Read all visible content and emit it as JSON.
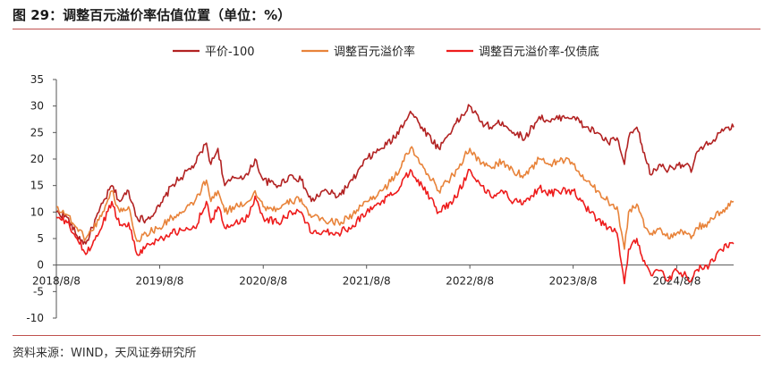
{
  "title": "图 29：调整百元溢价率估值位置（单位：%）",
  "source": "资料来源：WIND，天风证券研究所",
  "chart_data": {
    "type": "line",
    "x_ticks": [
      "2018/8/8",
      "2019/8/8",
      "2020/8/8",
      "2021/8/8",
      "2022/8/8",
      "2023/8/8",
      "2024/8/8"
    ],
    "y_ticks": [
      35,
      30,
      25,
      20,
      15,
      10,
      5,
      0,
      -5,
      -10
    ],
    "ylim": [
      -10,
      35
    ],
    "xlim": [
      "2018-08-08",
      "2025-02-25"
    ],
    "legend_position": "top-center",
    "grid": false,
    "series": [
      {
        "name": "平价-100",
        "color": "#b22222",
        "points": [
          [
            "2018-08-08",
            10.0
          ],
          [
            "2018-09-15",
            9.0
          ],
          [
            "2018-10-20",
            5.5
          ],
          [
            "2018-11-20",
            4.0
          ],
          [
            "2019-01-05",
            10.0
          ],
          [
            "2019-02-20",
            15.0
          ],
          [
            "2019-03-20",
            12.0
          ],
          [
            "2019-04-20",
            14.0
          ],
          [
            "2019-05-20",
            9.0
          ],
          [
            "2019-06-20",
            8.5
          ],
          [
            "2019-08-08",
            11.0
          ],
          [
            "2019-09-20",
            15.0
          ],
          [
            "2019-11-01",
            17.0
          ],
          [
            "2019-12-10",
            19.0
          ],
          [
            "2020-01-20",
            23.0
          ],
          [
            "2020-02-05",
            19.0
          ],
          [
            "2020-03-01",
            22.0
          ],
          [
            "2020-03-25",
            15.0
          ],
          [
            "2020-05-01",
            16.5
          ],
          [
            "2020-06-15",
            17.0
          ],
          [
            "2020-07-10",
            20.0
          ],
          [
            "2020-08-08",
            16.0
          ],
          [
            "2020-09-30",
            15.0
          ],
          [
            "2020-11-15",
            17.0
          ],
          [
            "2020-12-20",
            16.0
          ],
          [
            "2021-01-25",
            12.0
          ],
          [
            "2021-03-10",
            14.0
          ],
          [
            "2021-05-01",
            13.0
          ],
          [
            "2021-06-20",
            16.0
          ],
          [
            "2021-08-08",
            20.0
          ],
          [
            "2021-09-30",
            22.0
          ],
          [
            "2021-11-15",
            24.0
          ],
          [
            "2022-01-10",
            29.0
          ],
          [
            "2022-02-20",
            26.0
          ],
          [
            "2022-04-20",
            22.0
          ],
          [
            "2022-06-10",
            26.0
          ],
          [
            "2022-08-08",
            30.0
          ],
          [
            "2022-09-15",
            27.0
          ],
          [
            "2022-10-20",
            26.0
          ],
          [
            "2022-12-01",
            27.0
          ],
          [
            "2023-01-10",
            25.0
          ],
          [
            "2023-02-20",
            24.0
          ],
          [
            "2023-04-10",
            28.0
          ],
          [
            "2023-05-20",
            27.0
          ],
          [
            "2023-06-30",
            28.0
          ],
          [
            "2023-08-08",
            28.0
          ],
          [
            "2023-09-20",
            26.0
          ],
          [
            "2023-11-01",
            25.0
          ],
          [
            "2023-12-10",
            23.0
          ],
          [
            "2024-01-10",
            24.0
          ],
          [
            "2024-02-05",
            19.0
          ],
          [
            "2024-02-20",
            24.0
          ],
          [
            "2024-03-20",
            26.0
          ],
          [
            "2024-04-20",
            20.0
          ],
          [
            "2024-05-10",
            17.0
          ],
          [
            "2024-06-10",
            19.0
          ],
          [
            "2024-07-10",
            18.0
          ],
          [
            "2024-08-08",
            19.0
          ],
          [
            "2024-09-10",
            19.0
          ],
          [
            "2024-09-28",
            17.5
          ],
          [
            "2024-10-15",
            21.0
          ],
          [
            "2024-12-01",
            23.0
          ],
          [
            "2025-01-10",
            25.0
          ],
          [
            "2025-02-25",
            26.0
          ]
        ]
      },
      {
        "name": "调整百元溢价率",
        "color": "#e8833a",
        "points": [
          [
            "2018-08-08",
            11.0
          ],
          [
            "2018-09-15",
            9.5
          ],
          [
            "2018-10-20",
            7.0
          ],
          [
            "2018-11-20",
            5.0
          ],
          [
            "2019-01-05",
            8.5
          ],
          [
            "2019-02-20",
            14.0
          ],
          [
            "2019-03-20",
            10.0
          ],
          [
            "2019-04-20",
            11.0
          ],
          [
            "2019-05-20",
            4.5
          ],
          [
            "2019-06-20",
            6.0
          ],
          [
            "2019-08-08",
            7.0
          ],
          [
            "2019-09-20",
            9.0
          ],
          [
            "2019-11-01",
            10.0
          ],
          [
            "2019-12-10",
            12.0
          ],
          [
            "2020-01-20",
            16.0
          ],
          [
            "2020-02-05",
            12.0
          ],
          [
            "2020-03-01",
            14.0
          ],
          [
            "2020-03-25",
            10.0
          ],
          [
            "2020-05-01",
            11.0
          ],
          [
            "2020-06-15",
            12.0
          ],
          [
            "2020-07-10",
            14.0
          ],
          [
            "2020-08-08",
            11.0
          ],
          [
            "2020-09-30",
            10.5
          ],
          [
            "2020-11-15",
            12.0
          ],
          [
            "2020-12-20",
            12.5
          ],
          [
            "2021-01-25",
            9.0
          ],
          [
            "2021-03-10",
            8.5
          ],
          [
            "2021-05-01",
            8.0
          ],
          [
            "2021-06-20",
            9.5
          ],
          [
            "2021-08-08",
            12.0
          ],
          [
            "2021-09-30",
            14.0
          ],
          [
            "2021-11-15",
            16.5
          ],
          [
            "2022-01-10",
            22.0
          ],
          [
            "2022-02-20",
            19.0
          ],
          [
            "2022-04-20",
            14.0
          ],
          [
            "2022-06-10",
            17.0
          ],
          [
            "2022-08-08",
            22.0
          ],
          [
            "2022-09-15",
            19.0
          ],
          [
            "2022-10-20",
            18.5
          ],
          [
            "2022-12-01",
            19.5
          ],
          [
            "2023-01-10",
            17.5
          ],
          [
            "2023-02-20",
            17.0
          ],
          [
            "2023-04-10",
            20.0
          ],
          [
            "2023-05-20",
            19.0
          ],
          [
            "2023-06-30",
            20.0
          ],
          [
            "2023-08-08",
            19.0
          ],
          [
            "2023-09-20",
            16.0
          ],
          [
            "2023-11-01",
            14.0
          ],
          [
            "2023-12-10",
            12.0
          ],
          [
            "2024-01-10",
            11.0
          ],
          [
            "2024-02-05",
            3.0
          ],
          [
            "2024-02-20",
            10.0
          ],
          [
            "2024-03-20",
            11.5
          ],
          [
            "2024-04-20",
            7.0
          ],
          [
            "2024-05-10",
            6.0
          ],
          [
            "2024-06-10",
            7.0
          ],
          [
            "2024-07-10",
            5.0
          ],
          [
            "2024-08-08",
            6.0
          ],
          [
            "2024-09-10",
            6.0
          ],
          [
            "2024-09-28",
            5.0
          ],
          [
            "2024-10-15",
            7.0
          ],
          [
            "2024-12-01",
            8.0
          ],
          [
            "2025-01-10",
            10.0
          ],
          [
            "2025-02-25",
            12.0
          ]
        ]
      },
      {
        "name": "调整百元溢价率-仅债底",
        "color": "#ee1c1c",
        "points": [
          [
            "2018-08-08",
            9.0
          ],
          [
            "2018-09-15",
            8.0
          ],
          [
            "2018-10-20",
            5.0
          ],
          [
            "2018-11-20",
            2.0
          ],
          [
            "2019-01-05",
            6.0
          ],
          [
            "2019-02-20",
            12.0
          ],
          [
            "2019-03-20",
            7.5
          ],
          [
            "2019-04-20",
            8.0
          ],
          [
            "2019-05-20",
            2.0
          ],
          [
            "2019-06-20",
            3.5
          ],
          [
            "2019-08-08",
            5.0
          ],
          [
            "2019-09-20",
            6.0
          ],
          [
            "2019-11-01",
            6.5
          ],
          [
            "2019-12-10",
            7.0
          ],
          [
            "2020-01-20",
            12.0
          ],
          [
            "2020-02-05",
            8.0
          ],
          [
            "2020-03-01",
            11.0
          ],
          [
            "2020-03-25",
            7.0
          ],
          [
            "2020-05-01",
            8.0
          ],
          [
            "2020-06-15",
            9.0
          ],
          [
            "2020-07-10",
            13.0
          ],
          [
            "2020-08-08",
            9.0
          ],
          [
            "2020-09-30",
            8.0
          ],
          [
            "2020-11-15",
            10.0
          ],
          [
            "2020-12-20",
            10.0
          ],
          [
            "2021-01-25",
            6.0
          ],
          [
            "2021-03-10",
            6.5
          ],
          [
            "2021-05-01",
            6.0
          ],
          [
            "2021-06-20",
            7.5
          ],
          [
            "2021-08-08",
            10.0
          ],
          [
            "2021-09-30",
            12.0
          ],
          [
            "2021-11-15",
            13.5
          ],
          [
            "2022-01-10",
            18.0
          ],
          [
            "2022-02-20",
            15.0
          ],
          [
            "2022-04-20",
            10.0
          ],
          [
            "2022-06-10",
            12.0
          ],
          [
            "2022-08-08",
            18.0
          ],
          [
            "2022-09-15",
            15.0
          ],
          [
            "2022-10-20",
            13.0
          ],
          [
            "2022-12-01",
            14.0
          ],
          [
            "2023-01-10",
            12.0
          ],
          [
            "2023-02-20",
            12.0
          ],
          [
            "2023-04-10",
            14.5
          ],
          [
            "2023-05-20",
            13.5
          ],
          [
            "2023-06-30",
            14.0
          ],
          [
            "2023-08-08",
            14.0
          ],
          [
            "2023-09-20",
            11.0
          ],
          [
            "2023-11-01",
            8.5
          ],
          [
            "2023-12-10",
            7.0
          ],
          [
            "2024-01-10",
            6.0
          ],
          [
            "2024-02-05",
            -3.5
          ],
          [
            "2024-02-20",
            3.0
          ],
          [
            "2024-03-20",
            5.0
          ],
          [
            "2024-04-20",
            0.0
          ],
          [
            "2024-05-10",
            -2.0
          ],
          [
            "2024-06-10",
            -1.0
          ],
          [
            "2024-07-10",
            -3.0
          ],
          [
            "2024-08-08",
            -1.0
          ],
          [
            "2024-09-10",
            -2.0
          ],
          [
            "2024-09-28",
            -3.0
          ],
          [
            "2024-10-15",
            -1.0
          ],
          [
            "2024-12-01",
            0.0
          ],
          [
            "2025-01-10",
            3.0
          ],
          [
            "2025-02-25",
            4.0
          ]
        ]
      }
    ]
  }
}
